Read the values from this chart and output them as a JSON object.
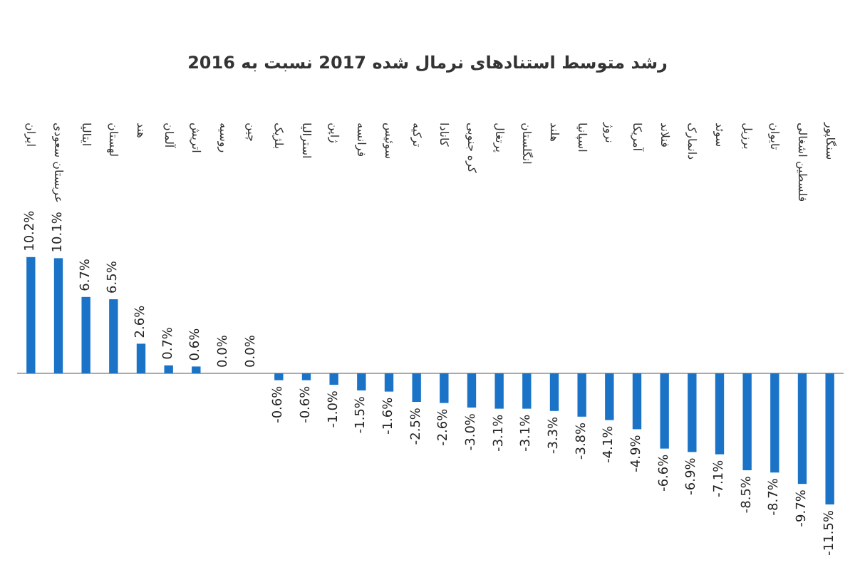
{
  "chart_data": {
    "type": "bar",
    "title": "رشد متوسط استنادهای نرمال شده 2017 نسبت به 2016",
    "categories": [
      "ایران",
      "عربستان سعودی",
      "ایتالیا",
      "لهستان",
      "هند",
      "آلمان",
      "اتریش",
      "روسیه",
      "چین",
      "بلژیک",
      "استرالیا",
      "ژاپن",
      "فرانسه",
      "سوئیس",
      "ترکیه",
      "کانادا",
      "کره جنوبی",
      "پرتغال",
      "انگلستان",
      "هلند",
      "اسپانیا",
      "نروژ",
      "آمریکا",
      "فنلاند",
      "دانمارک",
      "سوئد",
      "برزیل",
      "تایوان",
      "فلسطین اشغالی",
      "سنگاپور"
    ],
    "values": [
      10.2,
      10.1,
      6.7,
      6.5,
      2.6,
      0.7,
      0.6,
      0.0,
      0.0,
      -0.6,
      -0.6,
      -1.0,
      -1.5,
      -1.6,
      -2.5,
      -2.6,
      -3.0,
      -3.1,
      -3.1,
      -3.3,
      -3.8,
      -4.1,
      -4.9,
      -6.6,
      -6.9,
      -7.1,
      -8.5,
      -8.7,
      -9.7,
      -11.5
    ],
    "value_labels": [
      "10.2%",
      "10.1%",
      "6.7%",
      "6.5%",
      "2.6%",
      "0.7%",
      "0.6%",
      "0.0%",
      "0.0%",
      "-0.6%",
      "-0.6%",
      "-1.0%",
      "-1.5%",
      "-1.6%",
      "-2.5%",
      "-2.6%",
      "-3.0%",
      "-3.1%",
      "-3.1%",
      "-3.3%",
      "-3.8%",
      "-4.1%",
      "-4.9%",
      "-6.6%",
      "-6.9%",
      "-7.1%",
      "-8.5%",
      "-8.7%",
      "-9.7%",
      "-11.5%"
    ],
    "color": "#1a73c6"
  }
}
